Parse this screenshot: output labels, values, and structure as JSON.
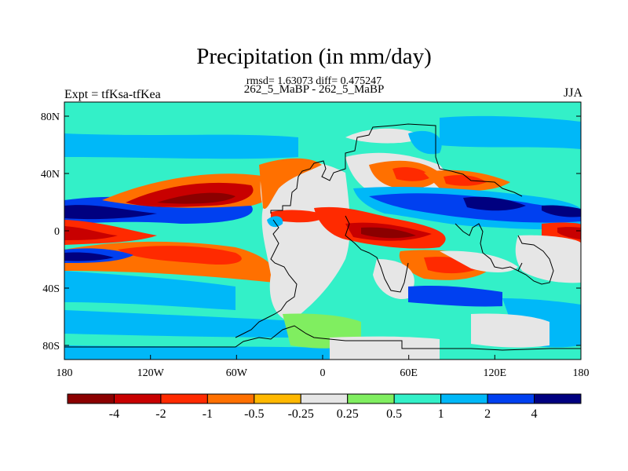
{
  "title": "Precipitation (in mm/day)",
  "stats": "rmsd= 1.63073 diff= 0.475247",
  "case_label": "262_5_MaBP - 262_5_MaBP",
  "expt_label": "Expt = tfKsa-tfKea",
  "season": "JJA",
  "lon_ticks": [
    "180",
    "120W",
    "60W",
    "0",
    "60E",
    "120E",
    "180"
  ],
  "lat_ticks": [
    "80N",
    "40N",
    "0",
    "40S",
    "80S"
  ],
  "colorbar": {
    "colors": [
      "#8b0000",
      "#c80000",
      "#ff2a00",
      "#ff7000",
      "#ffb800",
      "#e6e6e6",
      "#80ee60",
      "#33f0c8",
      "#00b8f8",
      "#0040f0",
      "#000080"
    ],
    "labels": [
      "-4",
      "-2",
      "-1",
      "-0.5",
      "-0.25",
      "0.25",
      "0.5",
      "1",
      "2",
      "4"
    ]
  },
  "map_colors": {
    "land_diff": "#e6e6e6",
    "ocean_base": "#33f0c8",
    "coastline": "#000000"
  }
}
